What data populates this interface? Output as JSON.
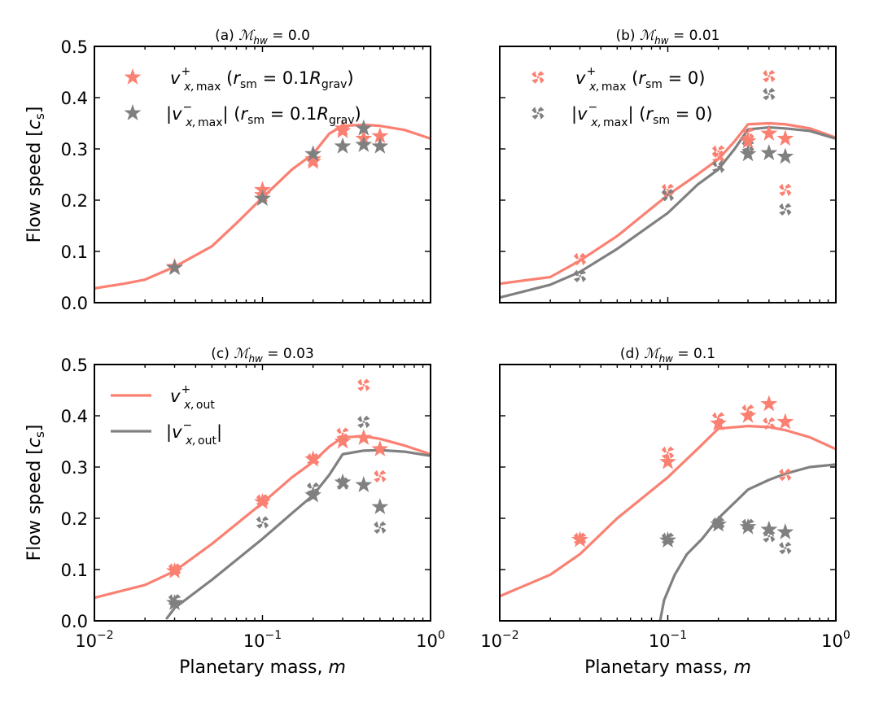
{
  "colors": {
    "vplus": "#FA8072",
    "vminus": "#808080"
  },
  "labels": {
    "ylabel_prefix": "Flow speed [",
    "ylabel_var": "c",
    "ylabel_sub": "s",
    "ylabel_suffix": "]",
    "xlabel_prefix": "Planetary mass, ",
    "xlabel_var": "m",
    "x_ticks": [
      "10",
      "10",
      "10"
    ],
    "x_tick_exps": [
      "−2",
      "−1",
      "0"
    ],
    "y_ticks": [
      "0.0",
      "0.1",
      "0.2",
      "0.3",
      "0.4",
      "0.5"
    ]
  },
  "chart_data": [
    {
      "id": "a",
      "type": "line+scatter",
      "title_prefix": "(a)",
      "mach_value": "0.0",
      "ylim": [
        0,
        0.5
      ],
      "xlim": [
        0.01,
        1
      ],
      "xscale": "log",
      "legend": {
        "placement": "top-left",
        "marker": "star",
        "rsm_text": "0.1",
        "rsm_unit": "grav"
      },
      "series": [
        {
          "name": "v+ max (star)",
          "color_key": "vplus",
          "marker": "star",
          "points": [
            [
              0.03,
              0.07
            ],
            [
              0.1,
              0.21
            ],
            [
              0.1,
              0.22
            ],
            [
              0.2,
              0.28
            ],
            [
              0.2,
              0.275
            ],
            [
              0.3,
              0.335
            ],
            [
              0.3,
              0.34
            ],
            [
              0.4,
              0.32
            ],
            [
              0.5,
              0.325
            ]
          ]
        },
        {
          "name": "|v- max| (star)",
          "color_key": "vminus",
          "marker": "star",
          "points": [
            [
              0.03,
              0.068
            ],
            [
              0.1,
              0.203
            ],
            [
              0.2,
              0.29
            ],
            [
              0.3,
              0.305
            ],
            [
              0.4,
              0.308
            ],
            [
              0.4,
              0.34
            ],
            [
              0.5,
              0.305
            ]
          ]
        },
        {
          "name": "v+ out",
          "color_key": "vplus",
          "line": true,
          "points": [
            [
              0.01,
              0.028
            ],
            [
              0.015,
              0.037
            ],
            [
              0.02,
              0.045
            ],
            [
              0.03,
              0.07
            ],
            [
              0.05,
              0.11
            ],
            [
              0.07,
              0.155
            ],
            [
              0.1,
              0.205
            ],
            [
              0.15,
              0.26
            ],
            [
              0.2,
              0.29
            ],
            [
              0.25,
              0.33
            ],
            [
              0.3,
              0.345
            ],
            [
              0.4,
              0.347
            ],
            [
              0.5,
              0.345
            ],
            [
              0.7,
              0.337
            ],
            [
              1.0,
              0.32
            ]
          ]
        }
      ]
    },
    {
      "id": "b",
      "type": "line+scatter",
      "title_prefix": "(b)",
      "mach_value": "0.01",
      "ylim": [
        0,
        0.5
      ],
      "xlim": [
        0.01,
        1
      ],
      "xscale": "log",
      "legend": {
        "placement": "top-left",
        "marker": "x",
        "rsm_text": "0"
      },
      "series": [
        {
          "name": "v+ max (x)",
          "color_key": "vplus",
          "marker": "x",
          "points": [
            [
              0.03,
              0.085
            ],
            [
              0.1,
              0.22
            ],
            [
              0.2,
              0.285
            ],
            [
              0.2,
              0.295
            ],
            [
              0.3,
              0.33
            ],
            [
              0.4,
              0.442
            ],
            [
              0.5,
              0.22
            ]
          ]
        },
        {
          "name": "|v- max| (x)",
          "color_key": "vminus",
          "marker": "x",
          "points": [
            [
              0.03,
              0.052
            ],
            [
              0.1,
              0.21
            ],
            [
              0.2,
              0.265
            ],
            [
              0.3,
              0.305
            ],
            [
              0.4,
              0.407
            ],
            [
              0.5,
              0.182
            ]
          ]
        },
        {
          "name": "v+ max (star)",
          "color_key": "vplus",
          "marker": "star",
          "points": [
            [
              0.3,
              0.315
            ],
            [
              0.4,
              0.33
            ],
            [
              0.5,
              0.32
            ]
          ]
        },
        {
          "name": "|v- max| (star)",
          "color_key": "vminus",
          "marker": "star",
          "points": [
            [
              0.3,
              0.29
            ],
            [
              0.4,
              0.292
            ],
            [
              0.5,
              0.285
            ]
          ]
        },
        {
          "name": "v+ out",
          "color_key": "vplus",
          "line": true,
          "points": [
            [
              0.01,
              0.037
            ],
            [
              0.02,
              0.05
            ],
            [
              0.03,
              0.082
            ],
            [
              0.05,
              0.13
            ],
            [
              0.1,
              0.21
            ],
            [
              0.15,
              0.25
            ],
            [
              0.2,
              0.28
            ],
            [
              0.25,
              0.315
            ],
            [
              0.3,
              0.348
            ],
            [
              0.4,
              0.35
            ],
            [
              0.5,
              0.348
            ],
            [
              0.7,
              0.34
            ],
            [
              1.0,
              0.322
            ]
          ]
        },
        {
          "name": "|v- out|",
          "color_key": "vminus",
          "line": true,
          "points": [
            [
              0.01,
              0.01
            ],
            [
              0.02,
              0.035
            ],
            [
              0.03,
              0.06
            ],
            [
              0.05,
              0.105
            ],
            [
              0.1,
              0.175
            ],
            [
              0.15,
              0.23
            ],
            [
              0.2,
              0.26
            ],
            [
              0.25,
              0.3
            ],
            [
              0.3,
              0.338
            ],
            [
              0.4,
              0.342
            ],
            [
              0.5,
              0.34
            ],
            [
              0.7,
              0.335
            ],
            [
              1.0,
              0.32
            ]
          ]
        }
      ]
    },
    {
      "id": "c",
      "type": "line+scatter",
      "title_prefix": "(c)",
      "mach_value": "0.03",
      "ylim": [
        0,
        0.5
      ],
      "xlim": [
        0.01,
        1
      ],
      "xscale": "log",
      "legend": {
        "placement": "top-left",
        "marker": "line",
        "sub_text": "out"
      },
      "series": [
        {
          "name": "v+ max (x)",
          "color_key": "vplus",
          "marker": "x",
          "points": [
            [
              0.03,
              0.1
            ],
            [
              0.1,
              0.235
            ],
            [
              0.2,
              0.315
            ],
            [
              0.3,
              0.365
            ],
            [
              0.4,
              0.46
            ],
            [
              0.5,
              0.282
            ]
          ]
        },
        {
          "name": "|v- max| (x)",
          "color_key": "vminus",
          "marker": "x",
          "points": [
            [
              0.03,
              0.04
            ],
            [
              0.1,
              0.192
            ],
            [
              0.2,
              0.258
            ],
            [
              0.3,
              0.268
            ],
            [
              0.4,
              0.388
            ],
            [
              0.5,
              0.182
            ]
          ]
        },
        {
          "name": "v+ max (star)",
          "color_key": "vplus",
          "marker": "star",
          "points": [
            [
              0.03,
              0.097
            ],
            [
              0.1,
              0.232
            ],
            [
              0.2,
              0.315
            ],
            [
              0.3,
              0.35
            ],
            [
              0.4,
              0.357
            ],
            [
              0.5,
              0.335
            ]
          ]
        },
        {
          "name": "|v- max| (star)",
          "color_key": "vminus",
          "marker": "star",
          "points": [
            [
              0.03,
              0.035
            ],
            [
              0.2,
              0.245
            ],
            [
              0.3,
              0.27
            ],
            [
              0.4,
              0.265
            ],
            [
              0.5,
              0.222
            ]
          ]
        },
        {
          "name": "v+ out",
          "color_key": "vplus",
          "line": true,
          "points": [
            [
              0.01,
              0.045
            ],
            [
              0.02,
              0.07
            ],
            [
              0.03,
              0.097
            ],
            [
              0.05,
              0.15
            ],
            [
              0.1,
              0.23
            ],
            [
              0.15,
              0.28
            ],
            [
              0.2,
              0.31
            ],
            [
              0.25,
              0.34
            ],
            [
              0.3,
              0.358
            ],
            [
              0.4,
              0.36
            ],
            [
              0.5,
              0.355
            ],
            [
              0.7,
              0.342
            ],
            [
              1.0,
              0.325
            ]
          ]
        },
        {
          "name": "|v- out|",
          "color_key": "vminus",
          "line": true,
          "points": [
            [
              0.027,
              0.005
            ],
            [
              0.03,
              0.025
            ],
            [
              0.05,
              0.08
            ],
            [
              0.1,
              0.16
            ],
            [
              0.15,
              0.21
            ],
            [
              0.2,
              0.245
            ],
            [
              0.25,
              0.285
            ],
            [
              0.3,
              0.325
            ],
            [
              0.4,
              0.332
            ],
            [
              0.5,
              0.333
            ],
            [
              0.7,
              0.33
            ],
            [
              1.0,
              0.322
            ]
          ]
        }
      ]
    },
    {
      "id": "d",
      "type": "line+scatter",
      "title_prefix": "(d)",
      "mach_value": "0.1",
      "ylim": [
        0,
        0.5
      ],
      "xlim": [
        0.01,
        1
      ],
      "xscale": "log",
      "legend": null,
      "series": [
        {
          "name": "v+ max (x)",
          "color_key": "vplus",
          "marker": "x",
          "points": [
            [
              0.03,
              0.16
            ],
            [
              0.1,
              0.328
            ],
            [
              0.2,
              0.395
            ],
            [
              0.3,
              0.41
            ],
            [
              0.4,
              0.385
            ],
            [
              0.5,
              0.285
            ]
          ]
        },
        {
          "name": "|v- max| (x)",
          "color_key": "vminus",
          "marker": "x",
          "points": [
            [
              0.1,
              0.16
            ],
            [
              0.2,
              0.19
            ],
            [
              0.3,
              0.187
            ],
            [
              0.4,
              0.165
            ],
            [
              0.5,
              0.142
            ]
          ]
        },
        {
          "name": "v+ max (star)",
          "color_key": "vplus",
          "marker": "star",
          "points": [
            [
              0.03,
              0.158
            ],
            [
              0.1,
              0.31
            ],
            [
              0.2,
              0.385
            ],
            [
              0.3,
              0.4
            ],
            [
              0.4,
              0.423
            ],
            [
              0.5,
              0.388
            ]
          ]
        },
        {
          "name": "|v- max| (star)",
          "color_key": "vminus",
          "marker": "star",
          "points": [
            [
              0.1,
              0.157
            ],
            [
              0.2,
              0.188
            ],
            [
              0.3,
              0.183
            ],
            [
              0.4,
              0.178
            ],
            [
              0.5,
              0.173
            ]
          ]
        },
        {
          "name": "v+ out",
          "color_key": "vplus",
          "line": true,
          "points": [
            [
              0.01,
              0.048
            ],
            [
              0.02,
              0.09
            ],
            [
              0.03,
              0.13
            ],
            [
              0.05,
              0.2
            ],
            [
              0.1,
              0.28
            ],
            [
              0.15,
              0.335
            ],
            [
              0.2,
              0.375
            ],
            [
              0.3,
              0.38
            ],
            [
              0.4,
              0.378
            ],
            [
              0.5,
              0.372
            ],
            [
              0.7,
              0.358
            ],
            [
              1.0,
              0.335
            ]
          ]
        },
        {
          "name": "|v- out|",
          "color_key": "vminus",
          "line": true,
          "points": [
            [
              0.09,
              0.0
            ],
            [
              0.095,
              0.04
            ],
            [
              0.11,
              0.09
            ],
            [
              0.13,
              0.13
            ],
            [
              0.16,
              0.16
            ],
            [
              0.2,
              0.2
            ],
            [
              0.3,
              0.256
            ],
            [
              0.4,
              0.275
            ],
            [
              0.5,
              0.287
            ],
            [
              0.7,
              0.3
            ],
            [
              1.0,
              0.305
            ]
          ]
        }
      ]
    }
  ]
}
